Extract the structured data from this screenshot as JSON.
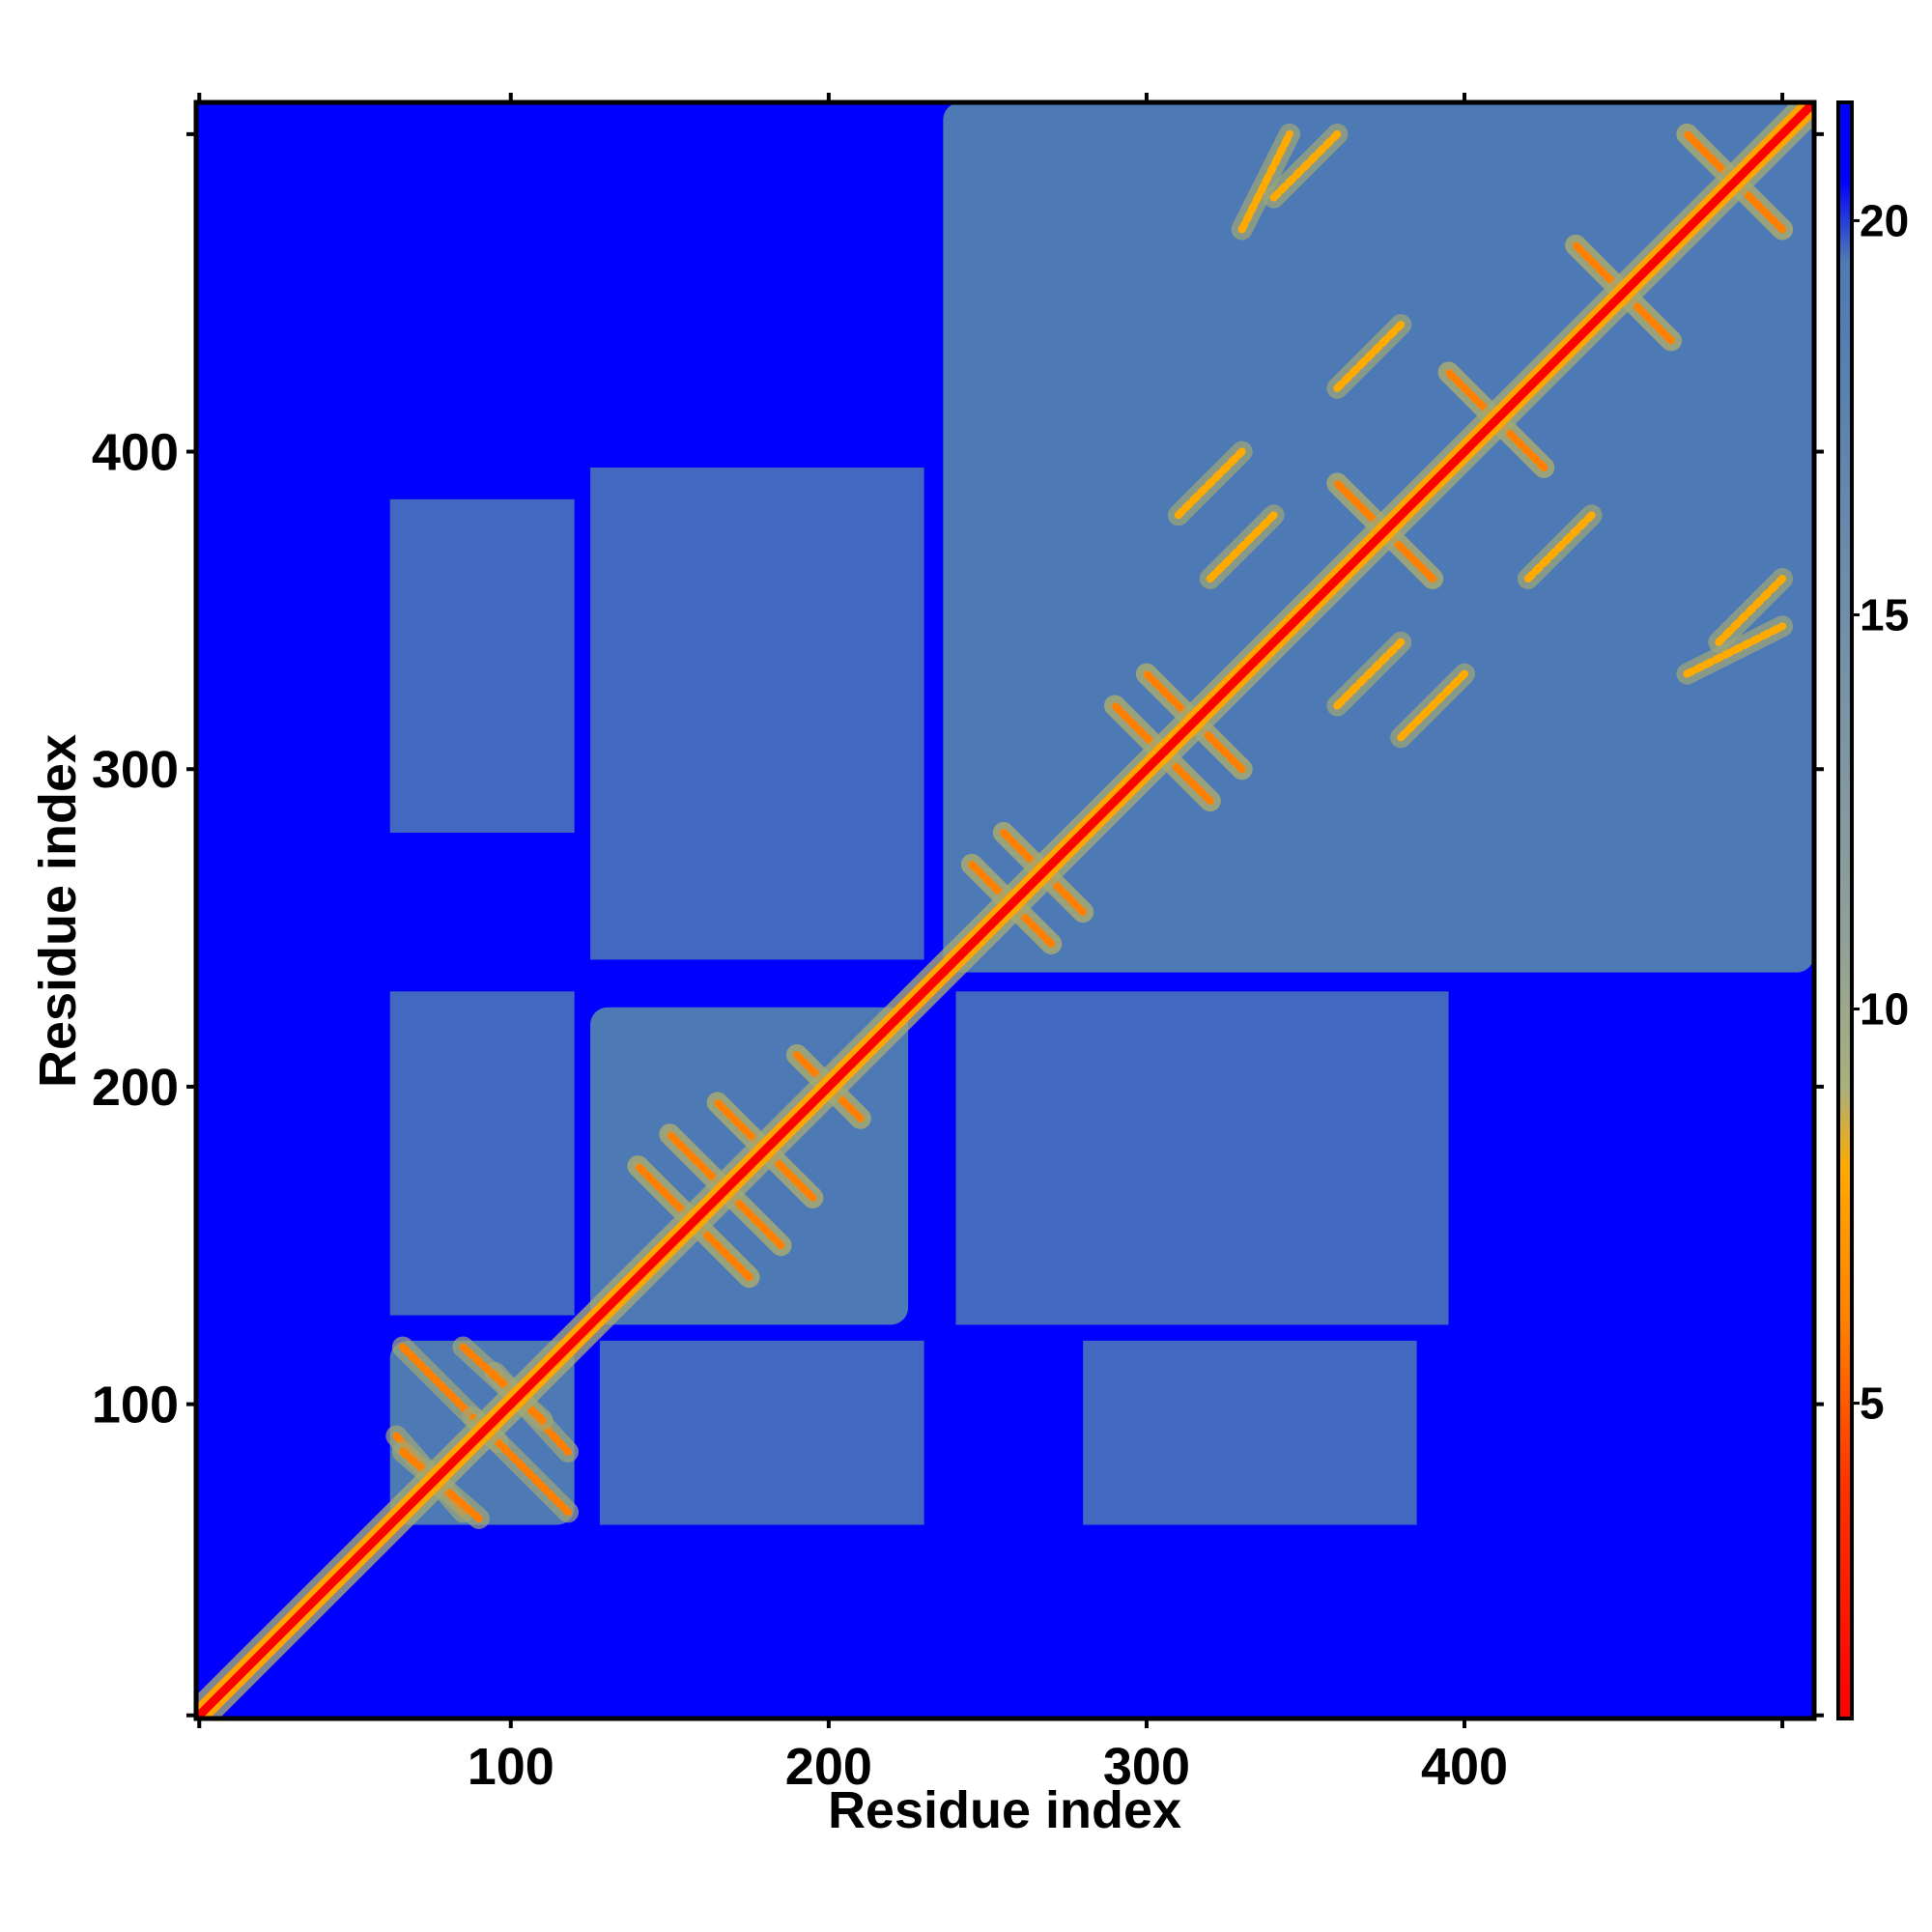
{
  "chart_data": {
    "type": "heatmap",
    "subtype": "contact-distance-map",
    "title": "",
    "xlabel": "Residue index",
    "ylabel": "Residue index",
    "xlim": [
      1,
      510
    ],
    "ylim": [
      1,
      510
    ],
    "x_ticks": [
      100,
      200,
      300,
      400
    ],
    "y_ticks": [
      100,
      200,
      300,
      400
    ],
    "x_tick_labels": [
      "100",
      "200",
      "300",
      "400"
    ],
    "y_tick_labels": [
      "100",
      "200",
      "300",
      "400"
    ],
    "minor_ticks": [
      2,
      500
    ],
    "grid": false,
    "colorbar": {
      "position": "right",
      "range": [
        1,
        21.5
      ],
      "ticks": [
        5,
        10,
        15,
        20
      ],
      "tick_labels": [
        "5",
        "10",
        "15",
        "20"
      ],
      "stops": [
        {
          "value": 1,
          "color": "#ff0000"
        },
        {
          "value": 4,
          "color": "#ff3300"
        },
        {
          "value": 6,
          "color": "#ff8000"
        },
        {
          "value": 8,
          "color": "#ffaa00"
        },
        {
          "value": 9,
          "color": "#a9b07a"
        },
        {
          "value": 11,
          "color": "#8f9f9a"
        },
        {
          "value": 15,
          "color": "#6f8faa"
        },
        {
          "value": 19.5,
          "color": "#4d7ab5"
        },
        {
          "value": 20.5,
          "color": "#0000ff"
        },
        {
          "value": 21.5,
          "color": "#0000ff"
        }
      ]
    },
    "colors": {
      "background": "#0000ff",
      "domain_fill": "#5a82b5",
      "mid_contact": "#a0a878",
      "close_contact": "#ffa500",
      "diagonal": "#ff0000"
    },
    "domains": [
      {
        "start": 62,
        "end": 120,
        "distance": 16
      },
      {
        "start": 125,
        "end": 225,
        "distance": 16
      },
      {
        "start": 236,
        "end": 510,
        "distance": 16
      }
    ],
    "inter_domain_patches": [
      {
        "x": [
          128,
          230
        ],
        "y": [
          62,
          120
        ],
        "distance": 18
      },
      {
        "x": [
          240,
          395
        ],
        "y": [
          125,
          230
        ],
        "distance": 18
      },
      {
        "x": [
          280,
          385
        ],
        "y": [
          62,
          120
        ],
        "distance": 19
      }
    ],
    "contact_strips": [
      {
        "x1": 64,
        "y1": 90,
        "x2": 85,
        "y2": 66,
        "distance": 6
      },
      {
        "x1": 66,
        "y1": 118,
        "x2": 96,
        "y2": 88,
        "distance": 6
      },
      {
        "x1": 95,
        "y1": 110,
        "x2": 118,
        "y2": 85,
        "distance": 6
      },
      {
        "x1": 140,
        "y1": 175,
        "x2": 175,
        "y2": 140,
        "distance": 6
      },
      {
        "x1": 150,
        "y1": 185,
        "x2": 185,
        "y2": 150,
        "distance": 6
      },
      {
        "x1": 165,
        "y1": 195,
        "x2": 195,
        "y2": 165,
        "distance": 6
      },
      {
        "x1": 190,
        "y1": 210,
        "x2": 210,
        "y2": 190,
        "distance": 6
      },
      {
        "x1": 245,
        "y1": 270,
        "x2": 270,
        "y2": 245,
        "distance": 6
      },
      {
        "x1": 255,
        "y1": 280,
        "x2": 280,
        "y2": 255,
        "distance": 6
      },
      {
        "x1": 290,
        "y1": 320,
        "x2": 320,
        "y2": 290,
        "distance": 6
      },
      {
        "x1": 300,
        "y1": 330,
        "x2": 330,
        "y2": 300,
        "distance": 6
      },
      {
        "x1": 360,
        "y1": 390,
        "x2": 390,
        "y2": 360,
        "distance": 6
      },
      {
        "x1": 395,
        "y1": 425,
        "x2": 425,
        "y2": 395,
        "distance": 6
      },
      {
        "x1": 435,
        "y1": 465,
        "x2": 465,
        "y2": 435,
        "distance": 6
      },
      {
        "x1": 470,
        "y1": 500,
        "x2": 500,
        "y2": 470,
        "distance": 6
      },
      {
        "x1": 330,
        "y1": 470,
        "x2": 345,
        "y2": 500,
        "distance": 7
      },
      {
        "x1": 380,
        "y1": 310,
        "x2": 400,
        "y2": 330,
        "distance": 7
      },
      {
        "x1": 420,
        "y1": 360,
        "x2": 440,
        "y2": 380,
        "distance": 7
      },
      {
        "x1": 320,
        "y1": 360,
        "x2": 340,
        "y2": 380,
        "distance": 7
      },
      {
        "x1": 480,
        "y1": 340,
        "x2": 500,
        "y2": 360,
        "distance": 7
      }
    ]
  }
}
